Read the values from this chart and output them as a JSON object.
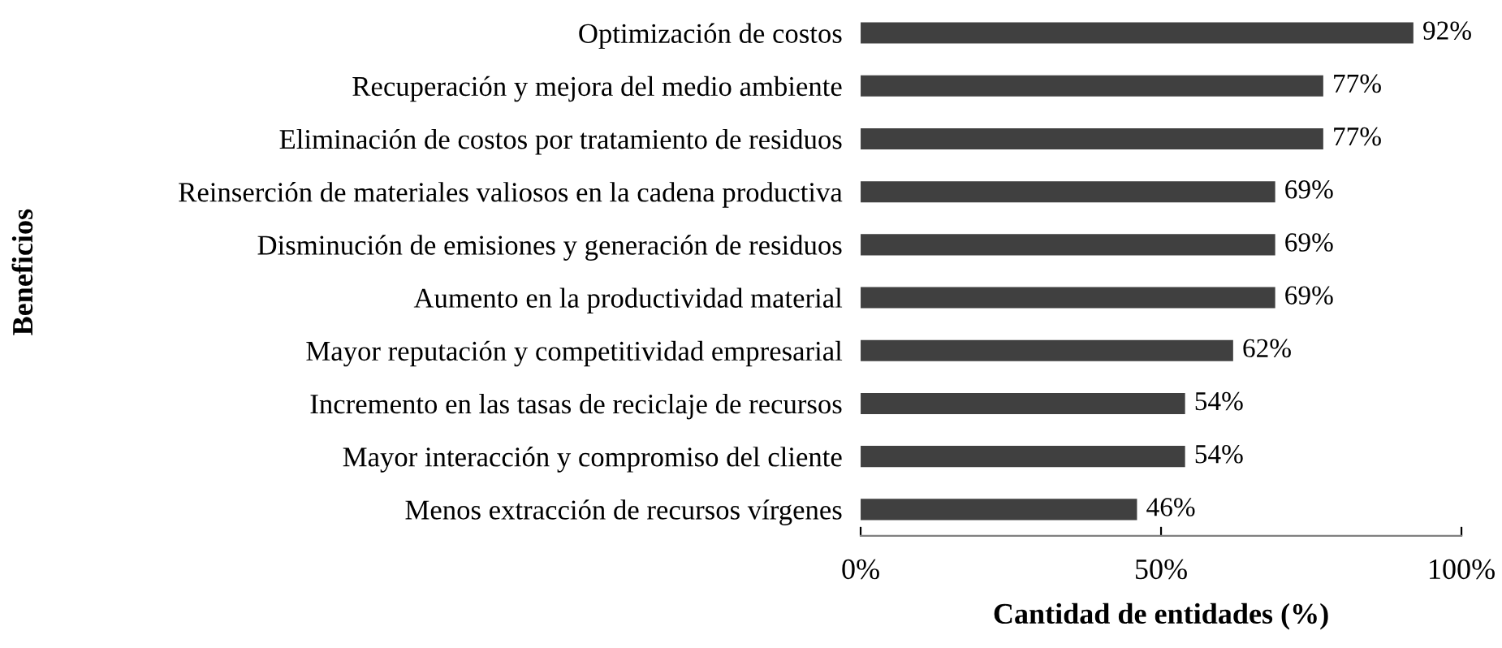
{
  "chart_data": {
    "type": "bar",
    "orientation": "horizontal",
    "categories": [
      "Optimización de costos",
      "Recuperación y mejora del medio ambiente",
      "Eliminación de costos por tratamiento de residuos",
      "Reinserción de materiales valiosos en la cadena productiva",
      "Disminución de emisiones y generación de residuos",
      "Aumento en la productividad material",
      "Mayor reputación y competitividad empresarial",
      "Incremento en las tasas de reciclaje de recursos",
      "Mayor interacción y compromiso del cliente",
      "Menos extracción de recursos vírgenes"
    ],
    "values": [
      92,
      77,
      77,
      69,
      69,
      69,
      62,
      54,
      54,
      46
    ],
    "value_labels": [
      "92%",
      "77%",
      "77%",
      "69%",
      "69%",
      "69%",
      "62%",
      "54%",
      "54%",
      "46%"
    ],
    "color": "#404040",
    "xlabel": "Cantidad de entidades (%)",
    "ylabel": "Beneficios",
    "xlim": [
      0,
      100
    ],
    "xticks": [
      {
        "value": 0,
        "label": "0%"
      },
      {
        "value": 50,
        "label": "50%"
      },
      {
        "value": 100,
        "label": "100%"
      }
    ],
    "grid": false,
    "legend": false
  }
}
